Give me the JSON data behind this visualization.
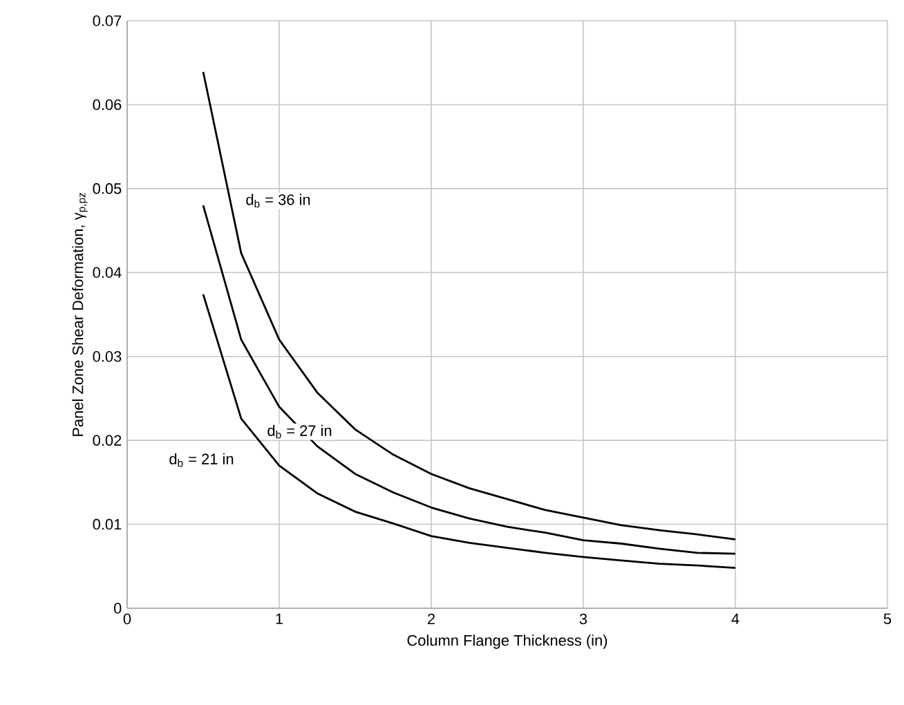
{
  "chart_data": {
    "type": "line",
    "xlabel": "Column Flange Thickness (in)",
    "ylabel": "Panel Zone Shear Deformation, γ$_{p,pz}$",
    "x": [
      0.5,
      0.75,
      1,
      1.25,
      1.5,
      1.75,
      2,
      2.25,
      2.5,
      2.75,
      3,
      3.25,
      3.5,
      3.75,
      4
    ],
    "series": [
      {
        "name": "d$_{b}$ = 36 in",
        "color": "#000000",
        "values": [
          0.0639,
          0.0423,
          0.032,
          0.0257,
          0.0213,
          0.0183,
          0.016,
          0.0143,
          0.013,
          0.0117,
          0.0108,
          0.0099,
          0.0093,
          0.0088,
          0.0082
        ]
      },
      {
        "name": "d$_{b}$ = 27 in",
        "color": "#000000",
        "values": [
          0.048,
          0.032,
          0.024,
          0.0193,
          0.016,
          0.0138,
          0.012,
          0.0107,
          0.0097,
          0.009,
          0.0081,
          0.0077,
          0.0071,
          0.0066,
          0.0065
        ]
      },
      {
        "name": "d$_{b}$ = 21 in",
        "color": "#000000",
        "values": [
          0.0374,
          0.0226,
          0.017,
          0.0137,
          0.0115,
          0.0101,
          0.0086,
          0.0078,
          0.0072,
          0.0066,
          0.0061,
          0.0057,
          0.0053,
          0.0051,
          0.0048
        ]
      }
    ],
    "xlim": [
      0,
      5
    ],
    "ylim": [
      0,
      0.07
    ],
    "xticks": [
      0,
      1,
      2,
      3,
      4,
      5
    ],
    "yticks": [
      0,
      0.01,
      0.02,
      0.03,
      0.04,
      0.05,
      0.06,
      0.07
    ],
    "grid": true,
    "legend": false,
    "marker": "none",
    "line_style": "solid"
  }
}
